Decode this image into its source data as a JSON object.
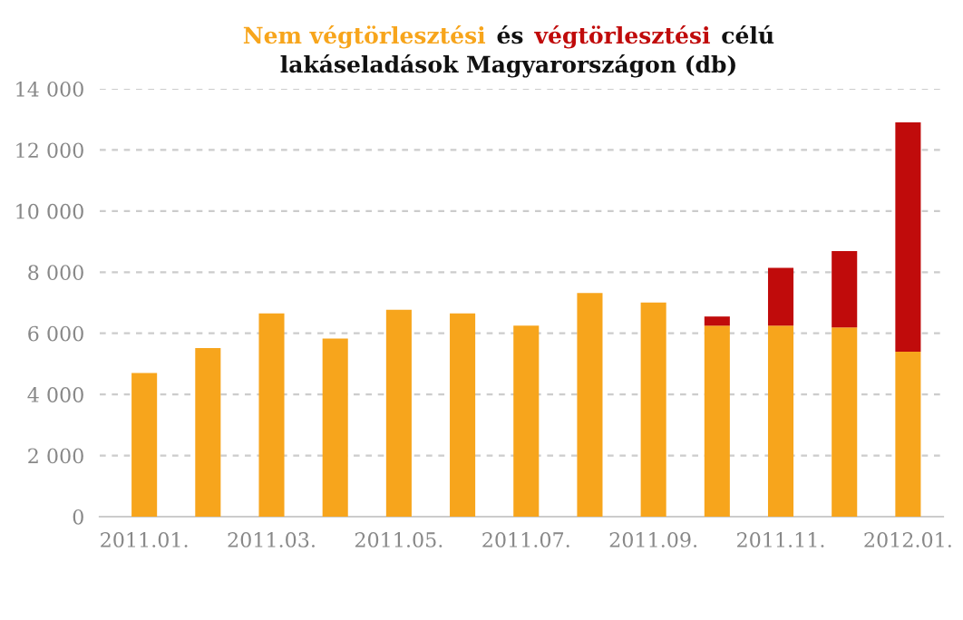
{
  "chart_data": {
    "type": "bar",
    "stacked": true,
    "title": "lakáseladások Magyarországon (db)",
    "annotations": [
      "és",
      "célú"
    ],
    "categories": [
      "2011.01.",
      null,
      "2011.03.",
      null,
      "2011.05.",
      null,
      "2011.07.",
      null,
      "2011.09.",
      null,
      "2011.11.",
      null,
      "2012.01."
    ],
    "series": [
      {
        "name": "Nem végtörlesztési",
        "color": "#f7a51c",
        "values": [
          4700,
          5520,
          6650,
          5830,
          6770,
          6650,
          6250,
          7320,
          7010,
          6250,
          6250,
          6190,
          5400
        ]
      },
      {
        "name": "végtörlesztési",
        "color": "#c00b0b",
        "values": [
          0,
          0,
          0,
          0,
          0,
          0,
          0,
          0,
          0,
          300,
          1890,
          2500,
          7500
        ]
      }
    ],
    "ylim": [
      0,
      14000
    ],
    "yticks": [
      0,
      {
        "value": 2000,
        "label": "2 000"
      },
      {
        "value": 4000,
        "label": "4 000"
      },
      {
        "value": 6000,
        "label": "6 000"
      },
      {
        "value": 8000,
        "label": "8 000"
      },
      {
        "value": 10000,
        "label": "10 000"
      },
      {
        "value": 12000,
        "label": "12 000"
      },
      {
        "value": 14000,
        "label": "14 000"
      }
    ],
    "grid": "y"
  }
}
